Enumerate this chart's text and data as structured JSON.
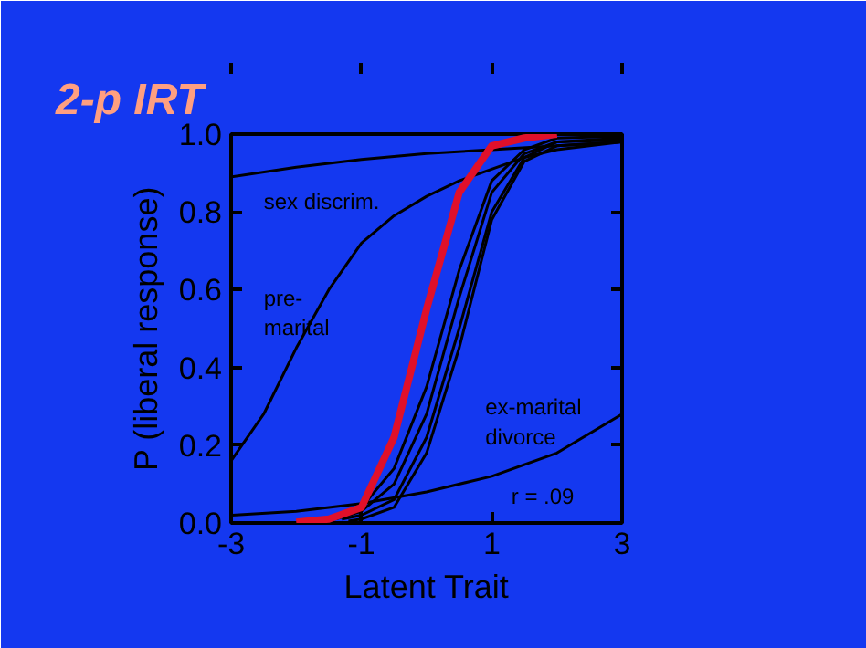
{
  "chart_data": {
    "type": "line",
    "title": "2-p IRT",
    "xlabel": "Latent Trait",
    "ylabel": "P (liberal response)",
    "xlim": [
      -3,
      3
    ],
    "ylim": [
      0,
      1
    ],
    "xticks": [
      -3,
      -1,
      1,
      3
    ],
    "yticks": [
      {
        "value": 0,
        "label": "0.0"
      },
      {
        "value": 0.2,
        "label": "0.2"
      },
      {
        "value": 0.4,
        "label": "0.4"
      },
      {
        "value": 0.6,
        "label": "0.6"
      },
      {
        "value": 0.8,
        "label": "0.8"
      },
      {
        "value": 1,
        "label": "1.0"
      }
    ],
    "grid": false,
    "marker": "none",
    "line_style": "solid",
    "series": [
      {
        "name": "sex discrim.",
        "color": "#000000",
        "x": [
          -3,
          -2,
          -1,
          0,
          1,
          2,
          3
        ],
        "values": [
          0.89,
          0.915,
          0.935,
          0.95,
          0.96,
          0.97,
          0.98
        ]
      },
      {
        "name": "pre-\nmarital",
        "color": "#000000",
        "x": [
          -3,
          -2.5,
          -2,
          -1.5,
          -1,
          -0.5,
          0,
          0.5,
          1,
          1.5,
          2,
          2.5,
          3
        ],
        "values": [
          0.16,
          0.28,
          0.45,
          0.6,
          0.72,
          0.79,
          0.84,
          0.88,
          0.91,
          0.94,
          0.96,
          0.97,
          0.98
        ]
      },
      {
        "name": "ex-marital\ndivorce",
        "color": "#000000",
        "x": [
          -3,
          -2,
          -1,
          0,
          1,
          2,
          3
        ],
        "values": [
          0.02,
          0.03,
          0.05,
          0.08,
          0.12,
          0.18,
          0.28
        ]
      },
      {
        "color": "#000000",
        "x": [
          -1.5,
          -1,
          -0.5,
          0,
          0.5,
          1,
          1.5,
          2,
          3
        ],
        "values": [
          0.01,
          0.04,
          0.14,
          0.35,
          0.65,
          0.88,
          0.96,
          0.99,
          0.995
        ]
      },
      {
        "color": "#000000",
        "x": [
          -1.4,
          -1,
          -0.5,
          0,
          0.5,
          1,
          1.5,
          2,
          3
        ],
        "values": [
          0.01,
          0.03,
          0.1,
          0.28,
          0.58,
          0.85,
          0.95,
          0.98,
          0.99
        ]
      },
      {
        "color": "#000000",
        "x": [
          -1.3,
          -1,
          -0.5,
          0,
          0.5,
          1,
          1.5,
          2,
          3
        ],
        "values": [
          0.01,
          0.02,
          0.06,
          0.22,
          0.5,
          0.8,
          0.94,
          0.98,
          0.985
        ]
      },
      {
        "color": "#000000",
        "x": [
          -1.2,
          -1,
          -0.5,
          0,
          0.5,
          1,
          1.5,
          2,
          3
        ],
        "values": [
          0.005,
          0.01,
          0.04,
          0.18,
          0.45,
          0.78,
          0.93,
          0.97,
          0.98
        ]
      },
      {
        "color": "#e0102a",
        "x": [
          -2,
          -1.5,
          -1,
          -0.5,
          0,
          0.5,
          1,
          1.5,
          2
        ],
        "values": [
          0.002,
          0.01,
          0.04,
          0.22,
          0.55,
          0.85,
          0.97,
          0.99,
          1
        ]
      }
    ],
    "annotations": [
      "r = .09"
    ]
  }
}
